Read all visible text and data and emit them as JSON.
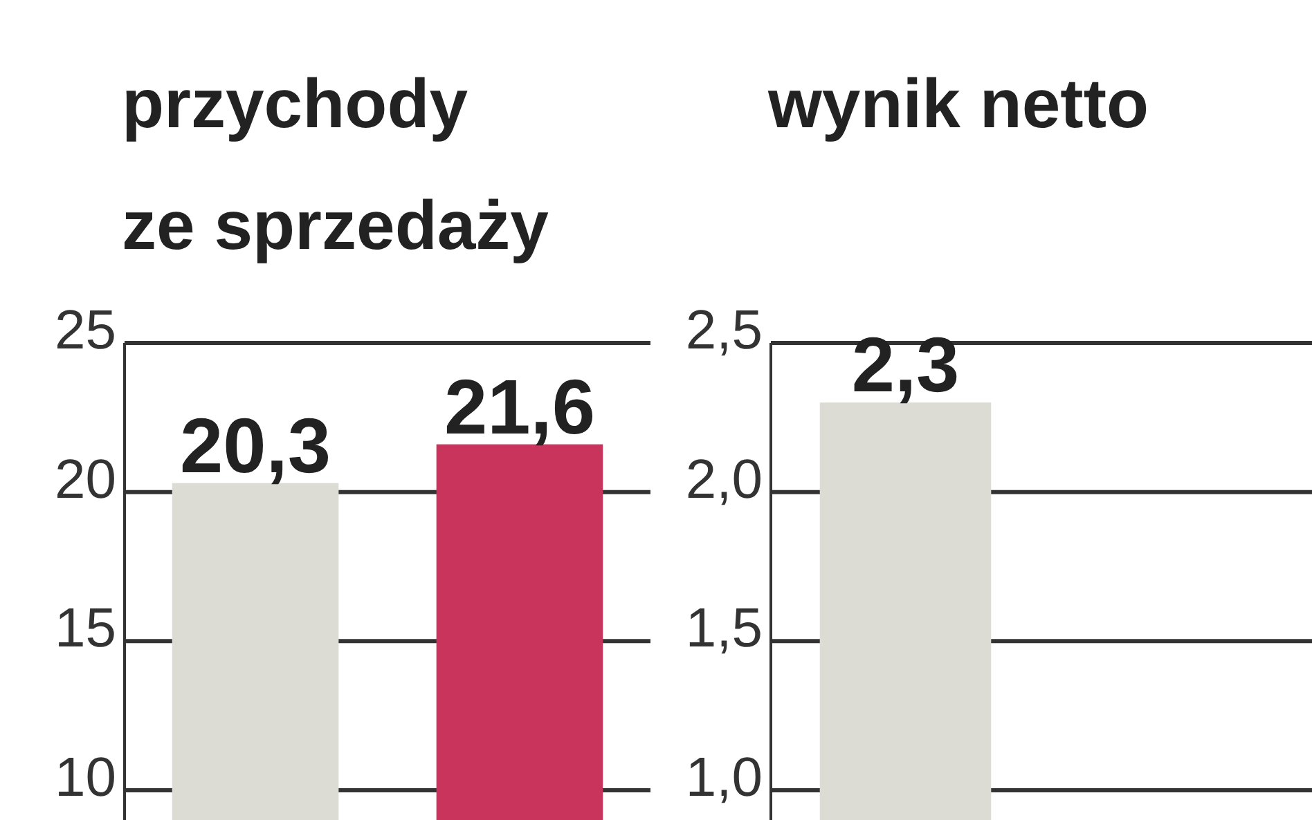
{
  "chart_data": [
    {
      "type": "bar",
      "title": "przychody\nze sprzedaży",
      "categories": [
        null,
        null
      ],
      "values": [
        20.3,
        21.6
      ],
      "colors": [
        "#dcdcd4",
        "#c8345c"
      ],
      "value_labels": [
        "20,3",
        "21,6"
      ],
      "ylim": [
        9,
        25
      ],
      "yticks": [
        10,
        15,
        20,
        25
      ],
      "grid": true
    },
    {
      "type": "bar",
      "title": "wynik netto",
      "categories": [
        null,
        null
      ],
      "values": [
        2.3,
        null
      ],
      "colors": [
        "#dcdcd4",
        null
      ],
      "value_labels": [
        "2,3",
        null
      ],
      "ylim": [
        0.9,
        2.5
      ],
      "yticks": [
        {
          "value": 1.0,
          "label": "1,0"
        },
        {
          "value": 1.5,
          "label": "1,5"
        },
        {
          "value": 2.0,
          "label": "2,0"
        },
        {
          "value": 2.5,
          "label": "2,5"
        }
      ],
      "grid": true
    }
  ]
}
